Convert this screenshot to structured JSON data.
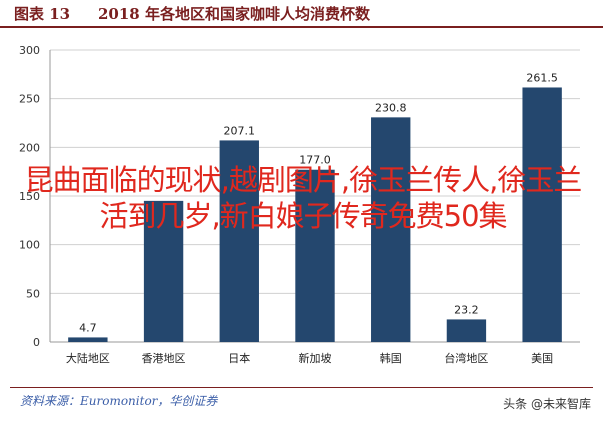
{
  "header": {
    "figure_label": "图表 13",
    "title": "2018 年各地区和国家咖啡人均消费杯数"
  },
  "chart_data": {
    "type": "bar",
    "categories": [
      "大陆地区",
      "香港地区",
      "日本",
      "新加坡",
      "韩国",
      "台湾地区",
      "美国"
    ],
    "values": [
      4.7,
      145.0,
      207.1,
      177.0,
      230.8,
      23.2,
      261.5
    ],
    "value_labels": [
      "4.7",
      "",
      "207.1",
      "177.0",
      "230.8",
      "23.2",
      "261.5"
    ],
    "ylim": [
      0,
      300
    ],
    "yticks": [
      0,
      50,
      100,
      150,
      200,
      250,
      300
    ],
    "grid": true,
    "bar_color": "#24476e"
  },
  "footer": {
    "source": "资料来源：Euromonitor，华创证券",
    "watermark": "头条 @未来智库"
  },
  "overlay": {
    "text": "昆曲面临的现状,越剧图片,徐玉兰传人,徐玉兰活到几岁,新白娘子传奇免费50集"
  }
}
